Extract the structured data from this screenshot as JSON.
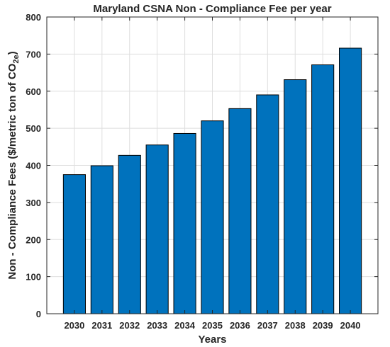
{
  "chart_data": {
    "type": "bar",
    "title": "Maryland CSNA Non - Compliance Fee per year",
    "xlabel": "Years",
    "ylabel": {
      "prefix": "Non - Compliance Fees ($/metric ton of CO",
      "subscript": "2e",
      "suffix": ")"
    },
    "categories": [
      "2030",
      "2031",
      "2032",
      "2033",
      "2034",
      "2035",
      "2036",
      "2037",
      "2038",
      "2039",
      "2040"
    ],
    "values": [
      375,
      399,
      427,
      455,
      486,
      520,
      553,
      590,
      631,
      671,
      716
    ],
    "ylim": [
      0,
      800
    ],
    "yticks": [
      "0",
      "100",
      "200",
      "300",
      "400",
      "500",
      "600",
      "700",
      "800"
    ],
    "grid": true,
    "bar_color": "#0072BD"
  }
}
